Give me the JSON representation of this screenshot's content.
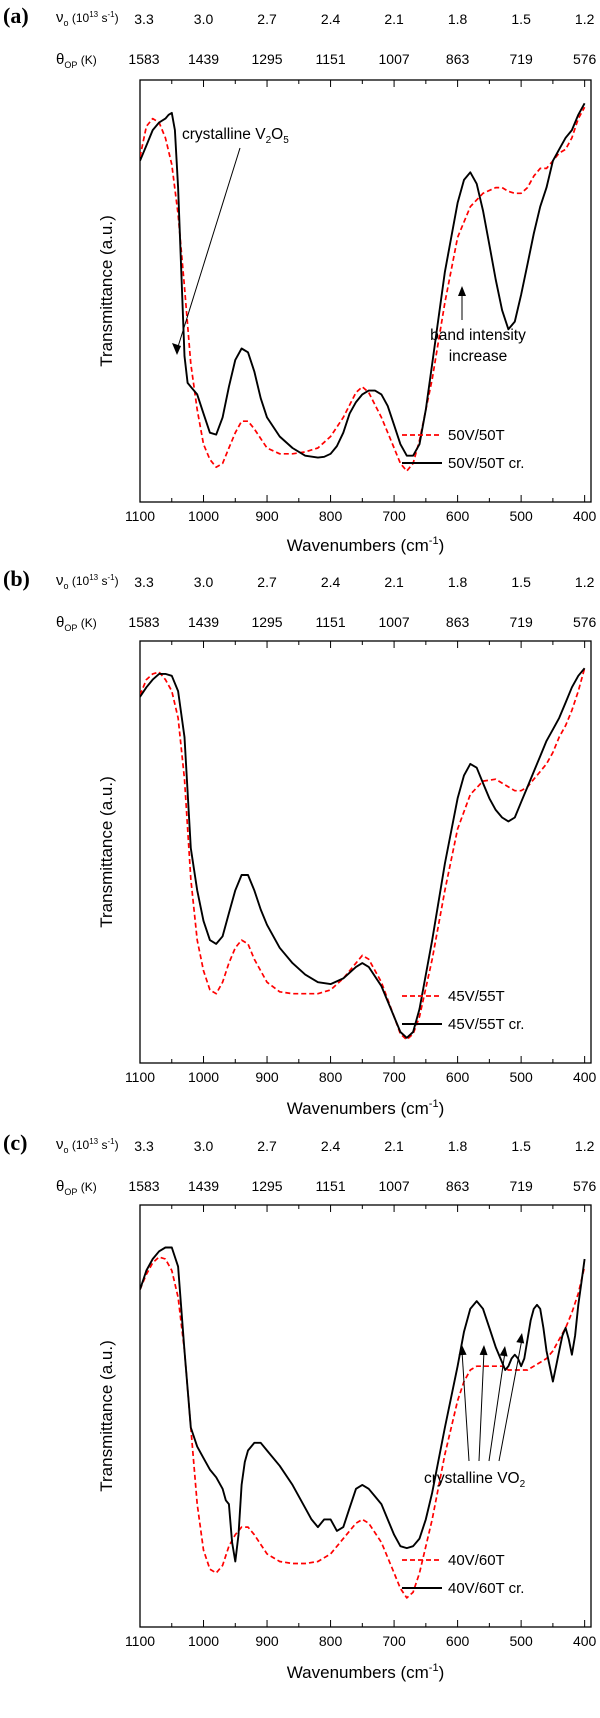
{
  "chart_data": [
    {
      "type": "line",
      "panel_label": "(a)",
      "xlabel": "Wavenumbers (cm⁻¹)",
      "ylabel": "Transmittance (a.u.)",
      "xlim": [
        1100,
        390
      ],
      "x_reversed": true,
      "y_ticks_shown": false,
      "bottom_ticks": [
        1100,
        1000,
        900,
        800,
        700,
        600,
        500,
        400
      ],
      "top_axis_1": {
        "label_symbol": "ν",
        "label_sub": "o",
        "label_unit_pre": "(10",
        "label_unit_exp": "13",
        "label_unit_mid": " s",
        "label_unit_exp2": "-1",
        "label_unit_post": ")",
        "ticks": [
          3.3,
          3.0,
          2.7,
          2.4,
          2.1,
          1.8,
          1.5,
          1.2
        ],
        "tick_labels": [
          "3.3",
          "3.0",
          "2.7",
          "2.4",
          "2.1",
          "1.8",
          "1.5",
          "1.2"
        ]
      },
      "top_axis_2": {
        "label_symbol": "θ",
        "label_sub": "OP",
        "label_unit": "(K)",
        "tick_labels": [
          "1583",
          "1439",
          "1295",
          "1151",
          "1007",
          "863",
          "719",
          "576"
        ]
      },
      "series": [
        {
          "name": "50V/50T",
          "color": "#ff0000",
          "dash": true,
          "x": [
            1100,
            1090,
            1080,
            1070,
            1060,
            1050,
            1040,
            1030,
            1020,
            1010,
            1000,
            990,
            980,
            970,
            960,
            950,
            940,
            930,
            920,
            900,
            880,
            860,
            840,
            820,
            800,
            780,
            760,
            750,
            740,
            720,
            700,
            690,
            680,
            670,
            660,
            640,
            620,
            600,
            580,
            560,
            540,
            530,
            520,
            510,
            500,
            490,
            480,
            470,
            460,
            450,
            440,
            430,
            420,
            410,
            400
          ],
          "values": [
            8.8,
            9.6,
            9.8,
            9.7,
            9.3,
            8.6,
            7.3,
            5.4,
            3.4,
            2.2,
            1.3,
            0.9,
            0.7,
            0.8,
            1.2,
            1.6,
            1.9,
            1.9,
            1.7,
            1.2,
            1.05,
            1.05,
            1.1,
            1.2,
            1.5,
            2.0,
            2.65,
            2.8,
            2.65,
            2.0,
            1.2,
            0.8,
            0.6,
            0.8,
            1.4,
            3.0,
            5.0,
            6.7,
            7.5,
            7.85,
            8.0,
            8.0,
            7.9,
            7.85,
            7.85,
            8.0,
            8.3,
            8.5,
            8.5,
            8.7,
            8.9,
            9.0,
            9.3,
            9.8,
            10.1
          ]
        },
        {
          "name": "50V/50T cr.",
          "color": "#000000",
          "dash": false,
          "x": [
            1100,
            1090,
            1080,
            1070,
            1060,
            1055,
            1050,
            1045,
            1040,
            1035,
            1030,
            1025,
            1020,
            1010,
            1000,
            990,
            980,
            970,
            960,
            950,
            940,
            930,
            920,
            910,
            900,
            880,
            860,
            840,
            820,
            810,
            800,
            790,
            780,
            770,
            760,
            750,
            740,
            730,
            720,
            710,
            700,
            690,
            680,
            670,
            660,
            650,
            640,
            620,
            600,
            590,
            580,
            570,
            560,
            550,
            540,
            530,
            520,
            510,
            500,
            490,
            480,
            470,
            460,
            450,
            440,
            430,
            420,
            410,
            400
          ],
          "values": [
            8.7,
            9.1,
            9.5,
            9.7,
            9.8,
            9.9,
            9.95,
            9.5,
            8.0,
            5.8,
            3.6,
            2.9,
            2.8,
            2.6,
            2.1,
            1.6,
            1.55,
            2.0,
            2.8,
            3.5,
            3.8,
            3.7,
            3.2,
            2.5,
            2.0,
            1.5,
            1.2,
            1.0,
            0.95,
            0.97,
            1.05,
            1.25,
            1.6,
            2.1,
            2.4,
            2.6,
            2.7,
            2.7,
            2.6,
            2.3,
            1.8,
            1.3,
            1.0,
            1.0,
            1.3,
            2.2,
            3.4,
            5.8,
            7.6,
            8.2,
            8.4,
            8.1,
            7.4,
            6.5,
            5.6,
            4.8,
            4.3,
            4.5,
            5.2,
            6.0,
            6.8,
            7.5,
            8.0,
            8.7,
            9.0,
            9.3,
            9.5,
            9.9,
            10.2
          ]
        }
      ],
      "legend_position": "bottom-right",
      "annotations": [
        {
          "text": "crystalline V",
          "sub": "2",
          "mid": "O",
          "sub2": "5"
        },
        {
          "text": "band intensity"
        },
        {
          "text": "increase"
        }
      ]
    },
    {
      "type": "line",
      "panel_label": "(b)",
      "xlabel": "Wavenumbers (cm⁻¹)",
      "ylabel": "Transmittance (a.u.)",
      "xlim": [
        1100,
        390
      ],
      "x_reversed": true,
      "y_ticks_shown": false,
      "bottom_ticks": [
        1100,
        1000,
        900,
        800,
        700,
        600,
        500,
        400
      ],
      "top_axis_1": {
        "label_symbol": "ν",
        "label_sub": "o",
        "label_unit_pre": "(10",
        "label_unit_exp": "13",
        "label_unit_mid": " s",
        "label_unit_exp2": "-1",
        "label_unit_post": ")",
        "ticks": [
          3.3,
          3.0,
          2.7,
          2.4,
          2.1,
          1.8,
          1.5,
          1.2
        ],
        "tick_labels": [
          "3.3",
          "3.0",
          "2.7",
          "2.4",
          "2.1",
          "1.8",
          "1.5",
          "1.2"
        ]
      },
      "top_axis_2": {
        "label_symbol": "θ",
        "label_sub": "OP",
        "label_unit": "(K)",
        "tick_labels": [
          "1583",
          "1439",
          "1295",
          "1151",
          "1007",
          "863",
          "719",
          "576"
        ]
      },
      "series": [
        {
          "name": "45V/55T",
          "color": "#ff0000",
          "dash": true,
          "x": [
            1100,
            1090,
            1080,
            1070,
            1060,
            1050,
            1040,
            1030,
            1020,
            1010,
            1000,
            990,
            980,
            970,
            960,
            950,
            940,
            930,
            920,
            900,
            880,
            860,
            840,
            820,
            800,
            780,
            760,
            750,
            740,
            720,
            700,
            690,
            680,
            670,
            660,
            640,
            620,
            600,
            580,
            560,
            540,
            530,
            520,
            510,
            500,
            490,
            480,
            470,
            460,
            450,
            440,
            430,
            420,
            410,
            400
          ],
          "values": [
            9.4,
            9.8,
            9.95,
            10.0,
            9.8,
            9.5,
            8.8,
            7.2,
            4.6,
            3.0,
            2.2,
            1.7,
            1.6,
            1.9,
            2.4,
            2.8,
            3.0,
            2.9,
            2.5,
            1.9,
            1.65,
            1.6,
            1.6,
            1.6,
            1.7,
            2.0,
            2.4,
            2.6,
            2.5,
            1.9,
            1.0,
            0.55,
            0.4,
            0.55,
            1.0,
            2.5,
            4.3,
            5.9,
            6.8,
            7.15,
            7.2,
            7.1,
            7.0,
            6.9,
            6.9,
            7.0,
            7.2,
            7.4,
            7.6,
            7.9,
            8.3,
            8.6,
            9.0,
            9.5,
            10.1
          ]
        },
        {
          "name": "45V/55T cr.",
          "color": "#000000",
          "dash": false,
          "x": [
            1100,
            1090,
            1080,
            1070,
            1060,
            1050,
            1040,
            1030,
            1020,
            1010,
            1000,
            990,
            980,
            970,
            960,
            950,
            940,
            930,
            920,
            910,
            900,
            880,
            860,
            840,
            820,
            800,
            780,
            760,
            750,
            740,
            720,
            700,
            690,
            680,
            670,
            660,
            640,
            620,
            600,
            590,
            580,
            570,
            560,
            550,
            540,
            530,
            520,
            510,
            500,
            490,
            480,
            470,
            460,
            450,
            440,
            430,
            420,
            410,
            400
          ],
          "values": [
            9.35,
            9.6,
            9.8,
            9.95,
            9.95,
            9.9,
            9.5,
            8.3,
            5.4,
            4.3,
            3.5,
            3.0,
            2.9,
            3.1,
            3.7,
            4.3,
            4.7,
            4.7,
            4.3,
            3.8,
            3.4,
            2.8,
            2.4,
            2.1,
            1.9,
            1.85,
            2.0,
            2.3,
            2.4,
            2.3,
            1.8,
            1.0,
            0.6,
            0.45,
            0.6,
            1.2,
            3.0,
            5.0,
            6.7,
            7.3,
            7.6,
            7.5,
            7.1,
            6.7,
            6.4,
            6.2,
            6.1,
            6.2,
            6.6,
            7.0,
            7.4,
            7.8,
            8.2,
            8.5,
            8.8,
            9.2,
            9.6,
            9.9,
            10.1
          ]
        }
      ],
      "legend_position": "bottom-right",
      "annotations": []
    },
    {
      "type": "line",
      "panel_label": "(c)",
      "xlabel": "Wavenumbers (cm⁻¹)",
      "ylabel": "Transmittance (a.u.)",
      "xlim": [
        1100,
        390
      ],
      "x_reversed": true,
      "y_ticks_shown": false,
      "bottom_ticks": [
        1100,
        1000,
        900,
        800,
        700,
        600,
        500,
        400
      ],
      "top_axis_1": {
        "label_symbol": "ν",
        "label_sub": "o",
        "label_unit_pre": "(10",
        "label_unit_exp": "13",
        "label_unit_mid": " s",
        "label_unit_exp2": "-1",
        "label_unit_post": ")",
        "ticks": [
          3.3,
          3.0,
          2.7,
          2.4,
          2.1,
          1.8,
          1.5,
          1.2
        ],
        "tick_labels": [
          "3.3",
          "3.0",
          "2.7",
          "2.4",
          "2.1",
          "1.8",
          "1.5",
          "1.2"
        ]
      },
      "top_axis_2": {
        "label_symbol": "θ",
        "label_sub": "OP",
        "label_unit": "(K)",
        "tick_labels": [
          "1583",
          "1439",
          "1295",
          "1151",
          "1007",
          "863",
          "719",
          "576"
        ]
      },
      "series": [
        {
          "name": "40V/60T",
          "color": "#ff0000",
          "dash": true,
          "x": [
            1100,
            1090,
            1080,
            1070,
            1060,
            1050,
            1040,
            1030,
            1020,
            1010,
            1000,
            990,
            980,
            970,
            960,
            950,
            940,
            930,
            920,
            900,
            880,
            860,
            840,
            820,
            800,
            780,
            760,
            750,
            740,
            720,
            700,
            690,
            680,
            670,
            660,
            640,
            620,
            600,
            590,
            580,
            570,
            560,
            550,
            540,
            530,
            520,
            510,
            500,
            490,
            480,
            470,
            460,
            450,
            440,
            430,
            420,
            410,
            400
          ],
          "values": [
            8.6,
            9.0,
            9.3,
            9.45,
            9.4,
            9.1,
            8.4,
            7.0,
            5.0,
            3.0,
            1.8,
            1.3,
            1.2,
            1.4,
            1.9,
            2.2,
            2.4,
            2.4,
            2.2,
            1.7,
            1.5,
            1.45,
            1.45,
            1.5,
            1.7,
            2.1,
            2.5,
            2.6,
            2.5,
            2.0,
            1.2,
            0.8,
            0.55,
            0.7,
            1.2,
            2.6,
            4.3,
            5.7,
            6.2,
            6.5,
            6.6,
            6.6,
            6.6,
            6.6,
            6.6,
            6.5,
            6.5,
            6.5,
            6.5,
            6.6,
            6.7,
            6.8,
            7.0,
            7.3,
            7.6,
            8.0,
            8.5,
            9.2
          ]
        },
        {
          "name": "40V/60T cr.",
          "color": "#000000",
          "dash": false,
          "x": [
            1100,
            1090,
            1080,
            1070,
            1060,
            1050,
            1040,
            1030,
            1020,
            1010,
            1000,
            990,
            980,
            970,
            965,
            960,
            955,
            950,
            945,
            940,
            935,
            930,
            920,
            910,
            900,
            880,
            860,
            840,
            830,
            820,
            810,
            800,
            790,
            780,
            770,
            760,
            750,
            740,
            730,
            720,
            710,
            700,
            690,
            680,
            670,
            660,
            650,
            640,
            620,
            600,
            590,
            580,
            570,
            560,
            550,
            540,
            530,
            525,
            520,
            515,
            510,
            505,
            500,
            495,
            490,
            485,
            480,
            475,
            470,
            465,
            460,
            455,
            450,
            445,
            440,
            435,
            430,
            425,
            420,
            415,
            410,
            405,
            400
          ],
          "values": [
            8.6,
            9.1,
            9.4,
            9.6,
            9.7,
            9.7,
            9.2,
            7.0,
            5.0,
            4.5,
            4.2,
            3.9,
            3.7,
            3.4,
            3.1,
            3.0,
            2.0,
            1.5,
            2.2,
            3.5,
            4.1,
            4.4,
            4.6,
            4.6,
            4.4,
            4.0,
            3.5,
            2.9,
            2.6,
            2.4,
            2.6,
            2.6,
            2.3,
            2.4,
            2.9,
            3.4,
            3.5,
            3.4,
            3.2,
            3.0,
            2.6,
            2.2,
            1.9,
            1.85,
            1.9,
            2.1,
            2.6,
            3.3,
            5.0,
            6.6,
            7.5,
            8.1,
            8.3,
            8.1,
            7.6,
            7.1,
            6.7,
            6.5,
            6.6,
            6.8,
            6.9,
            6.8,
            6.6,
            6.8,
            7.3,
            7.8,
            8.1,
            8.2,
            8.1,
            7.6,
            7.0,
            6.6,
            6.2,
            6.6,
            7.0,
            7.4,
            7.6,
            7.3,
            6.9,
            7.4,
            8.2,
            8.8,
            9.4
          ]
        }
      ],
      "legend_position": "bottom-right",
      "annotations": [
        {
          "text": "crystalline VO",
          "sub": "2"
        }
      ]
    }
  ]
}
